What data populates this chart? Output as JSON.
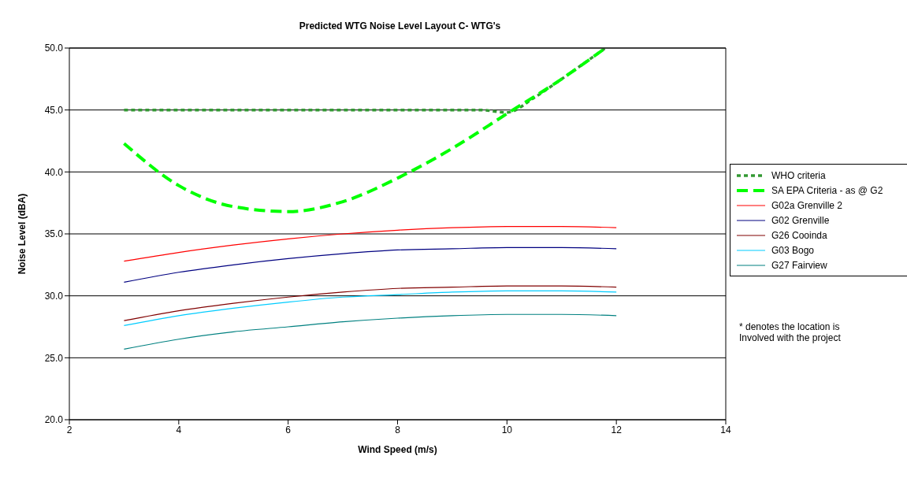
{
  "chart_data": {
    "type": "line",
    "title": "Predicted WTG Noise Level  Layout C- WTG's",
    "xlabel": "Wind Speed (m/s)",
    "ylabel": "Noise Level (dBA)",
    "xlim": [
      2,
      14
    ],
    "xticks": [
      2,
      4,
      6,
      8,
      10,
      12,
      14
    ],
    "ylim": [
      20,
      50
    ],
    "yticks": [
      {
        "value": 20,
        "label": "20.0"
      },
      {
        "value": 25,
        "label": "25.0"
      },
      {
        "value": 30,
        "label": "30.0"
      },
      {
        "value": 35,
        "label": "35.0"
      },
      {
        "value": 40,
        "label": "40.0"
      },
      {
        "value": 45,
        "label": "45.0"
      },
      {
        "value": 50,
        "label": "50.0"
      }
    ],
    "grid": "y",
    "legend": "right",
    "marker": "none",
    "annotations": [
      "* denotes the location is\n   Involved with the project"
    ],
    "series": [
      {
        "name": "WHO criteria",
        "color": "#339933",
        "line_style": "dotted",
        "x": [
          3,
          4,
          5,
          6,
          7,
          8,
          9,
          9.5,
          10,
          10.5,
          11,
          11.8
        ],
        "values": [
          45,
          45,
          45,
          45,
          45,
          45,
          45,
          45,
          44.8,
          46.0,
          47.5,
          50
        ]
      },
      {
        "name": "SA EPA  Criteria - as @ G2",
        "color": "#00ff00",
        "line_style": "dashed",
        "x": [
          3,
          4,
          5,
          6,
          7,
          8,
          9,
          10,
          11,
          11.8
        ],
        "values": [
          42.3,
          38.9,
          37.2,
          36.8,
          37.6,
          39.5,
          41.9,
          44.7,
          47.5,
          50
        ]
      },
      {
        "name": "G02a Grenville 2",
        "color": "#ff0000",
        "x": [
          3,
          4,
          5,
          6,
          7,
          8,
          9,
          10,
          11,
          12
        ],
        "values": [
          32.8,
          33.5,
          34.1,
          34.6,
          35.0,
          35.3,
          35.5,
          35.6,
          35.6,
          35.5
        ]
      },
      {
        "name": "G02 Grenville",
        "color": "#000080",
        "x": [
          3,
          4,
          5,
          6,
          7,
          8,
          9,
          10,
          11,
          12
        ],
        "values": [
          31.1,
          31.9,
          32.5,
          33.0,
          33.4,
          33.7,
          33.8,
          33.9,
          33.9,
          33.8
        ]
      },
      {
        "name": "G26 Cooinda",
        "color": "#800000",
        "x": [
          3,
          4,
          5,
          6,
          7,
          8,
          9,
          10,
          11,
          12
        ],
        "values": [
          28.0,
          28.8,
          29.4,
          29.9,
          30.3,
          30.6,
          30.7,
          30.8,
          30.8,
          30.7
        ]
      },
      {
        "name": "G03 Bogo",
        "color": "#00ccff",
        "x": [
          3,
          4,
          5,
          6,
          7,
          8,
          9,
          10,
          11,
          12
        ],
        "values": [
          27.6,
          28.4,
          29.0,
          29.5,
          29.9,
          30.1,
          30.3,
          30.4,
          30.4,
          30.3
        ]
      },
      {
        "name": "G27 Fairview",
        "color": "#008080",
        "x": [
          3,
          4,
          5,
          6,
          7,
          8,
          9,
          10,
          11,
          12
        ],
        "values": [
          25.7,
          26.5,
          27.1,
          27.5,
          27.9,
          28.2,
          28.4,
          28.5,
          28.5,
          28.4
        ]
      }
    ]
  }
}
